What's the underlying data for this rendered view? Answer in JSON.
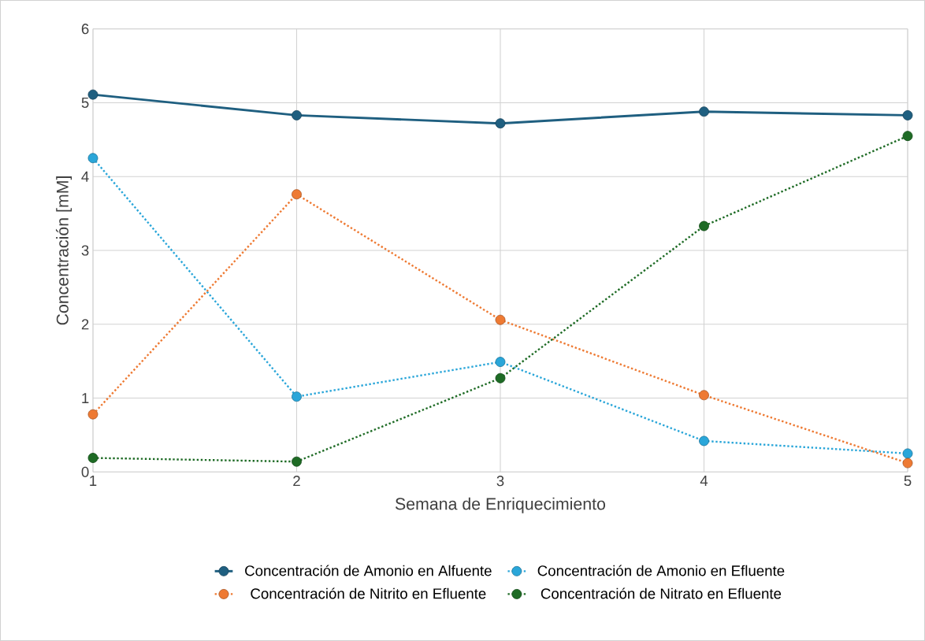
{
  "chart_data": {
    "type": "line",
    "xlabel": "Semana de Enriquecimiento",
    "ylabel": "Concentración [mM]",
    "x": [
      1,
      2,
      3,
      4,
      5
    ],
    "xlim": [
      1,
      5
    ],
    "xticks": [
      1,
      2,
      3,
      4,
      5
    ],
    "ylim": [
      0,
      6
    ],
    "yticks": [
      0,
      1,
      2,
      3,
      4,
      5,
      6
    ],
    "grid": true,
    "legend": "bottom",
    "marker": "circle",
    "series": [
      {
        "name": "Concentración de Amonio en Alfuente",
        "color": "#1f5f80",
        "line_style": "solid",
        "values": [
          5.11,
          4.83,
          4.72,
          4.88,
          4.83
        ]
      },
      {
        "name": "Concentración de Amonio en Efluente",
        "color": "#2aa6d9",
        "line_style": "dotted",
        "values": [
          4.25,
          1.02,
          1.49,
          0.42,
          0.25
        ]
      },
      {
        "name": "Concentración de Nitrito en Efluente",
        "color": "#ee7a33",
        "line_style": "dotted",
        "values": [
          0.78,
          3.76,
          2.06,
          1.04,
          0.12
        ]
      },
      {
        "name": "Concentración de Nitrato en Efluente",
        "color": "#1e6b25",
        "line_style": "dotted",
        "values": [
          0.19,
          0.14,
          1.27,
          3.33,
          4.55
        ]
      }
    ]
  }
}
